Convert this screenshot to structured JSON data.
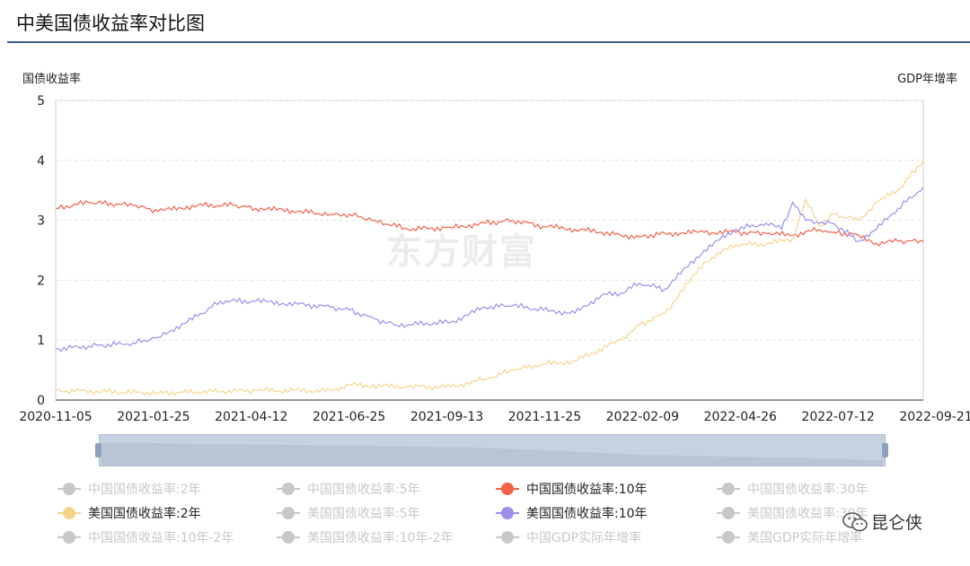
{
  "page": {
    "title": "中美国债收益率对比图"
  },
  "watermark": "东方财富",
  "brand": {
    "name": "昆仑侠"
  },
  "chart_data": {
    "type": "line",
    "title": "中美国债收益率对比图",
    "ylabel_left": "国债收益率",
    "ylabel_right": "GDP年增率",
    "ylim": [
      0,
      5
    ],
    "yticks": [
      0,
      1,
      2,
      3,
      4,
      5
    ],
    "xlim": [
      "2020-11-05",
      "2022-09-21"
    ],
    "xticks": [
      "2020-11-05",
      "2021-01-25",
      "2021-04-12",
      "2021-06-25",
      "2021-09-13",
      "2021-11-25",
      "2022-02-09",
      "2022-04-26",
      "2022-07-12",
      "2022-09-21"
    ],
    "grid": true,
    "legend_position": "bottom",
    "series": [
      {
        "name": "中国国债收益率:10年",
        "color": "#f26149",
        "x": [
          "2020-11-05",
          "2020-12-01",
          "2021-01-05",
          "2021-01-25",
          "2021-02-25",
          "2021-03-25",
          "2021-04-12",
          "2021-05-15",
          "2021-06-10",
          "2021-06-25",
          "2021-07-15",
          "2021-08-10",
          "2021-09-13",
          "2021-10-10",
          "2021-11-01",
          "2021-11-25",
          "2021-12-20",
          "2022-01-10",
          "2022-01-25",
          "2022-02-09",
          "2022-03-01",
          "2022-04-01",
          "2022-04-26",
          "2022-05-20",
          "2022-06-10",
          "2022-07-01",
          "2022-07-12",
          "2022-08-01",
          "2022-08-15",
          "2022-09-01",
          "2022-09-21"
        ],
        "values": [
          3.2,
          3.3,
          3.25,
          3.15,
          3.25,
          3.25,
          3.2,
          3.15,
          3.1,
          3.1,
          3.0,
          2.85,
          2.88,
          2.95,
          3.0,
          2.9,
          2.85,
          2.8,
          2.75,
          2.72,
          2.78,
          2.8,
          2.8,
          2.78,
          2.75,
          2.85,
          2.8,
          2.75,
          2.62,
          2.65,
          2.65
        ]
      },
      {
        "name": "美国国债收益率:2年",
        "color": "#f5d58c",
        "x": [
          "2020-11-05",
          "2021-01-25",
          "2021-04-12",
          "2021-06-10",
          "2021-06-25",
          "2021-08-10",
          "2021-09-13",
          "2021-10-10",
          "2021-11-01",
          "2021-11-25",
          "2021-12-20",
          "2022-01-25",
          "2022-02-09",
          "2022-03-01",
          "2022-04-01",
          "2022-04-26",
          "2022-05-20",
          "2022-06-10",
          "2022-06-20",
          "2022-07-01",
          "2022-07-12",
          "2022-08-01",
          "2022-08-15",
          "2022-09-01",
          "2022-09-21"
        ],
        "values": [
          0.16,
          0.12,
          0.16,
          0.16,
          0.25,
          0.22,
          0.22,
          0.35,
          0.5,
          0.6,
          0.65,
          1.0,
          1.25,
          1.45,
          2.3,
          2.6,
          2.6,
          2.7,
          3.35,
          2.9,
          3.1,
          3.0,
          3.3,
          3.5,
          4.0
        ]
      },
      {
        "name": "美国国债收益率:10年",
        "color": "#9b8fea",
        "x": [
          "2020-11-05",
          "2020-12-01",
          "2021-01-05",
          "2021-01-25",
          "2021-02-25",
          "2021-03-15",
          "2021-04-12",
          "2021-05-15",
          "2021-06-10",
          "2021-06-25",
          "2021-07-15",
          "2021-08-01",
          "2021-09-13",
          "2021-10-10",
          "2021-11-01",
          "2021-11-25",
          "2021-12-20",
          "2022-01-10",
          "2022-01-25",
          "2022-02-09",
          "2022-03-01",
          "2022-04-01",
          "2022-04-26",
          "2022-05-20",
          "2022-06-01",
          "2022-06-10",
          "2022-06-20",
          "2022-07-01",
          "2022-07-12",
          "2022-08-01",
          "2022-08-15",
          "2022-09-01",
          "2022-09-21"
        ],
        "values": [
          0.85,
          0.9,
          0.95,
          1.05,
          1.4,
          1.65,
          1.65,
          1.6,
          1.55,
          1.5,
          1.35,
          1.25,
          1.3,
          1.55,
          1.58,
          1.5,
          1.45,
          1.75,
          1.78,
          1.95,
          1.85,
          2.5,
          2.85,
          2.95,
          2.85,
          3.3,
          3.0,
          2.95,
          2.95,
          2.65,
          2.85,
          3.2,
          3.55
        ]
      }
    ]
  },
  "legend": {
    "items": [
      {
        "label": "中国国债收益率:2年",
        "active": false,
        "color": "#c8c8c8"
      },
      {
        "label": "中国国债收益率:5年",
        "active": false,
        "color": "#c8c8c8"
      },
      {
        "label": "中国国债收益率:10年",
        "active": true,
        "color": "#f26149"
      },
      {
        "label": "中国国债收益率:30年",
        "active": false,
        "color": "#c8c8c8"
      },
      {
        "label": "美国国债收益率:2年",
        "active": true,
        "color": "#f5d58c"
      },
      {
        "label": "美国国债收益率:5年",
        "active": false,
        "color": "#c8c8c8"
      },
      {
        "label": "美国国债收益率:10年",
        "active": true,
        "color": "#9b8fea"
      },
      {
        "label": "美国国债收益率:30年",
        "active": false,
        "color": "#c8c8c8"
      },
      {
        "label": "中国国债收益率:10年-2年",
        "active": false,
        "color": "#c8c8c8"
      },
      {
        "label": "美国国债收益率:10年-2年",
        "active": false,
        "color": "#c8c8c8"
      },
      {
        "label": "中国GDP实际年增率",
        "active": false,
        "color": "#c8c8c8"
      },
      {
        "label": "美国GDP实际年增率",
        "active": false,
        "color": "#c8c8c8"
      }
    ]
  }
}
